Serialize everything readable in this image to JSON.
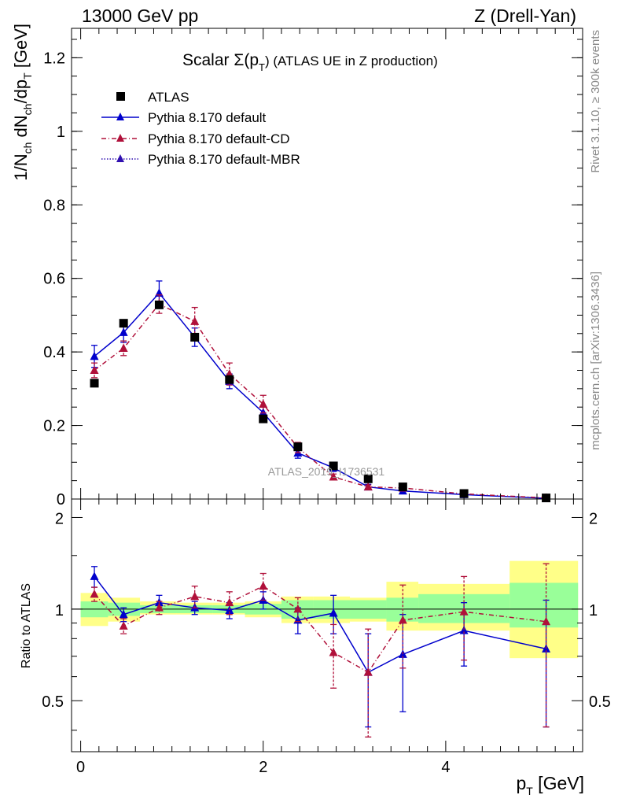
{
  "header": {
    "left": "13000 GeV pp",
    "right": "Z (Drell-Yan)"
  },
  "side": {
    "rivet": "Rivet 3.1.10, ≥ 300k events",
    "mcplots": "mcplots.cern.ch [arXiv:1306.3436]"
  },
  "watermark": "ATLAS_2019_I1736531",
  "colors": {
    "data": "#000000",
    "default": "#0000cc",
    "cd": "#b0103a",
    "mbr": "#3010b0",
    "band_inner": "#99ff99",
    "band_outer": "#ffff88"
  },
  "chart_data": [
    {
      "type": "scatter",
      "panel": "main",
      "title": "Scalar Σ(p_T) (ATLAS UE in Z production)",
      "title_parts": {
        "prefix": "Scalar ",
        "sigma": "Σ(p",
        "sub": "T",
        "suffix": ") (ATLAS UE in Z production)"
      },
      "ylabel": "1/N_ch dN_ch/dp_T [GeV]",
      "ylabel_parts": {
        "a": "1/N",
        "a_sub": "ch",
        "b": " dN",
        "b_sub": "ch",
        "c": "/dp",
        "c_sub": "T",
        "d": " [GeV]"
      },
      "xlim": [
        -0.1,
        5.5
      ],
      "ylim": [
        0,
        1.28
      ],
      "yticks": [
        0,
        0.2,
        0.4,
        0.6,
        0.8,
        1,
        1.2
      ],
      "ytick_labels": [
        "0",
        "0.2",
        "0.4",
        "0.6",
        "0.8",
        "1",
        "1.2"
      ],
      "legend_placement": "top-left",
      "x": [
        0.15,
        0.47,
        0.86,
        1.25,
        1.63,
        2.0,
        2.38,
        2.77,
        3.15,
        3.53,
        4.2,
        5.1
      ],
      "series": [
        {
          "name": "ATLAS",
          "key": "data",
          "style": "square",
          "values": [
            0.315,
            0.478,
            0.528,
            0.44,
            0.325,
            0.218,
            0.142,
            0.09,
            0.055,
            0.033,
            0.015,
            0.003
          ],
          "errors": [
            0.005,
            0.006,
            0.006,
            0.005,
            0.004,
            0.004,
            0.003,
            0.002,
            0.002,
            0.001,
            0.001,
            0.0005
          ]
        },
        {
          "name": "Pythia 8.170 default",
          "key": "default",
          "style": "solid",
          "values": [
            0.388,
            0.453,
            0.56,
            0.44,
            0.32,
            0.235,
            0.125,
            0.085,
            0.033,
            0.022,
            0.012,
            0.002
          ],
          "errors": [
            0.03,
            0.027,
            0.033,
            0.025,
            0.02,
            0.017,
            0.014,
            0.01,
            0.007,
            0.006,
            0.004,
            0.002
          ]
        },
        {
          "name": "Pythia 8.170 default-CD",
          "key": "cd",
          "style": "dashdot",
          "values": [
            0.35,
            0.41,
            0.53,
            0.483,
            0.34,
            0.258,
            0.14,
            0.06,
            0.033,
            0.03,
            0.014,
            0.003
          ],
          "errors": [
            0.02,
            0.02,
            0.025,
            0.038,
            0.03,
            0.024,
            0.014,
            0.008,
            0.005,
            0.006,
            0.004,
            0.002
          ]
        },
        {
          "name": "Pythia 8.170 default-MBR",
          "key": "mbr",
          "style": "dotted",
          "values": [],
          "errors": []
        }
      ]
    },
    {
      "type": "scatter",
      "panel": "ratio",
      "ylabel": "Ratio to ATLAS",
      "xlabel": "p_T [GeV]",
      "xlabel_parts": {
        "a": "p",
        "a_sub": "T",
        "b": " [GeV]"
      },
      "xlim": [
        -0.1,
        5.5
      ],
      "ylim": [
        0.34,
        2.3
      ],
      "xticks": [
        0,
        2,
        4
      ],
      "xtick_labels": [
        "0",
        "2",
        "4"
      ],
      "yticks": [
        0.5,
        1,
        2
      ],
      "ytick_labels": [
        "0.5",
        "1",
        "2"
      ],
      "x": [
        0.15,
        0.47,
        0.86,
        1.25,
        1.63,
        2.0,
        2.38,
        2.77,
        3.15,
        3.53,
        4.2,
        5.1
      ],
      "bands": {
        "edges": [
          0,
          0.3,
          0.65,
          1.05,
          1.45,
          1.8,
          2.2,
          2.55,
          2.95,
          3.35,
          3.7,
          4.7,
          5.45
        ],
        "inner": [
          [
            0.94,
            1.06
          ],
          [
            0.95,
            1.05
          ],
          [
            0.97,
            1.03
          ],
          [
            0.97,
            1.03
          ],
          [
            0.97,
            1.03
          ],
          [
            0.96,
            1.04
          ],
          [
            0.93,
            1.07
          ],
          [
            0.93,
            1.07
          ],
          [
            0.93,
            1.07
          ],
          [
            0.91,
            1.09
          ],
          [
            0.9,
            1.12
          ],
          [
            0.87,
            1.22
          ]
        ],
        "outer": [
          [
            0.88,
            1.13
          ],
          [
            0.91,
            1.09
          ],
          [
            0.96,
            1.06
          ],
          [
            0.96,
            1.05
          ],
          [
            0.96,
            1.05
          ],
          [
            0.94,
            1.06
          ],
          [
            0.9,
            1.1
          ],
          [
            0.9,
            1.1
          ],
          [
            0.91,
            1.09
          ],
          [
            0.85,
            1.23
          ],
          [
            0.85,
            1.21
          ],
          [
            0.69,
            1.44
          ]
        ]
      },
      "series": [
        {
          "name": "Pythia 8.170 default",
          "key": "default",
          "style": "solid",
          "values": [
            1.28,
            0.96,
            1.05,
            1.01,
            0.99,
            1.07,
            0.92,
            0.97,
            0.62,
            0.71,
            0.85,
            0.74
          ],
          "errors": [
            0.1,
            0.05,
            0.06,
            0.05,
            0.06,
            0.07,
            0.09,
            0.14,
            0.21,
            0.25,
            0.2,
            0.33
          ]
        },
        {
          "name": "Pythia 8.170 default-CD",
          "key": "cd",
          "style": "dashdot",
          "values": [
            1.12,
            0.88,
            1.01,
            1.1,
            1.05,
            1.19,
            1.0,
            0.72,
            0.62,
            0.92,
            0.98,
            0.91
          ],
          "errors": [
            0.06,
            0.05,
            0.05,
            0.09,
            0.09,
            0.12,
            0.09,
            0.17,
            0.24,
            0.28,
            0.3,
            0.5
          ]
        }
      ]
    }
  ]
}
